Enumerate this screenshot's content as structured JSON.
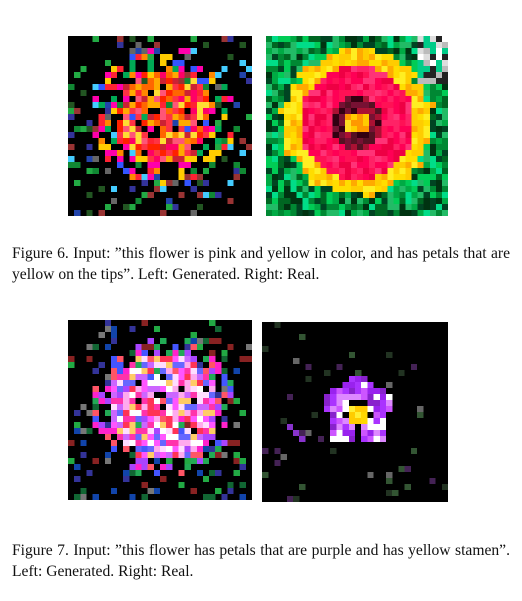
{
  "figures": [
    {
      "number": "Figure 6.",
      "caption": "Figure 6. Input: ”this flower is pink and yellow in color, and has petals that are yellow on the tips”. Left: Generated. Right: Real.",
      "left_image": "generated flower image (pink/red with yellow, noisy)",
      "right_image": "real flower image (pink petals with yellow tips, dark center)"
    },
    {
      "number": "Figure 7.",
      "caption": "Figure 7. Input: ”this flower has petals that are purple and has yellow stamen”. Left: Generated. Right: Real.",
      "left_image": "generated flower image (purple/pink, noisy)",
      "right_image": "real flower image (purple petals with yellow stamen)"
    }
  ],
  "colors": {
    "fig6_gen_core": "#ff3355",
    "fig6_real_petal": "#ff2266",
    "fig6_real_tip": "#ffdd00",
    "fig7_gen_core": "#ff55ff",
    "fig7_real_petal": "#aa33ff",
    "stamen": "#ffd800"
  }
}
